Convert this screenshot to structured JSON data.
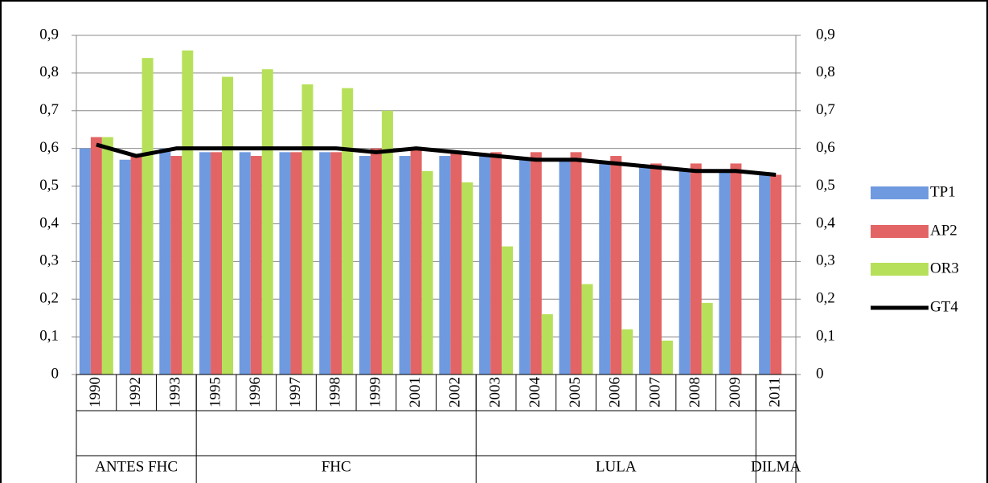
{
  "chart_data": {
    "type": "bar",
    "categories": [
      "1990",
      "1992",
      "1993",
      "1995",
      "1996",
      "1997",
      "1998",
      "1999",
      "2001",
      "2002",
      "2003",
      "2004",
      "2005",
      "2006",
      "2007",
      "2008",
      "2009",
      "2011"
    ],
    "groups": [
      "ANTES FHC",
      "ANTES FHC",
      "ANTES FHC",
      "FHC",
      "FHC",
      "FHC",
      "FHC",
      "FHC",
      "FHC",
      "FHC",
      "LULA",
      "LULA",
      "LULA",
      "LULA",
      "LULA",
      "LULA",
      "LULA",
      "DILMA"
    ],
    "series": [
      {
        "name": "TP1",
        "color": "#6f9ae0",
        "values": [
          0.6,
          0.57,
          0.6,
          0.59,
          0.59,
          0.59,
          0.59,
          0.58,
          0.58,
          0.58,
          0.58,
          0.57,
          0.57,
          0.56,
          0.55,
          0.54,
          0.54,
          0.53
        ]
      },
      {
        "name": "AP2",
        "color": "#e36464",
        "values": [
          0.63,
          0.58,
          0.58,
          0.59,
          0.58,
          0.59,
          0.59,
          0.6,
          0.6,
          0.59,
          0.59,
          0.59,
          0.59,
          0.58,
          0.56,
          0.56,
          0.56,
          0.53
        ]
      },
      {
        "name": "OR3",
        "color": "#b7e05a",
        "values": [
          0.63,
          0.84,
          0.86,
          0.79,
          0.81,
          0.77,
          0.76,
          0.7,
          0.54,
          0.51,
          0.34,
          0.16,
          0.24,
          0.12,
          0.09,
          0.19,
          0,
          0
        ]
      },
      {
        "name": "GT4",
        "type": "line",
        "color": "#000000",
        "values": [
          0.61,
          0.58,
          0.6,
          0.6,
          0.6,
          0.6,
          0.6,
          0.59,
          0.6,
          0.59,
          0.58,
          0.57,
          0.57,
          0.56,
          0.55,
          0.54,
          0.54,
          0.53
        ]
      }
    ],
    "ylim": [
      0,
      0.9
    ],
    "yticks": [
      0,
      {
        "value": 0.1,
        "label": "0,1"
      },
      {
        "value": 0.2,
        "label": "0,2"
      },
      {
        "value": 0.3,
        "label": "0,3"
      },
      {
        "value": 0.4,
        "label": "0,4"
      },
      {
        "value": 0.5,
        "label": "0,5"
      },
      {
        "value": 0.6,
        "label": "0,6"
      },
      {
        "value": 0.7,
        "label": "0,7"
      },
      {
        "value": 0.8,
        "label": "0,8"
      },
      {
        "value": 0.9,
        "label": "0,9"
      }
    ],
    "grid": true,
    "legend": "right"
  }
}
